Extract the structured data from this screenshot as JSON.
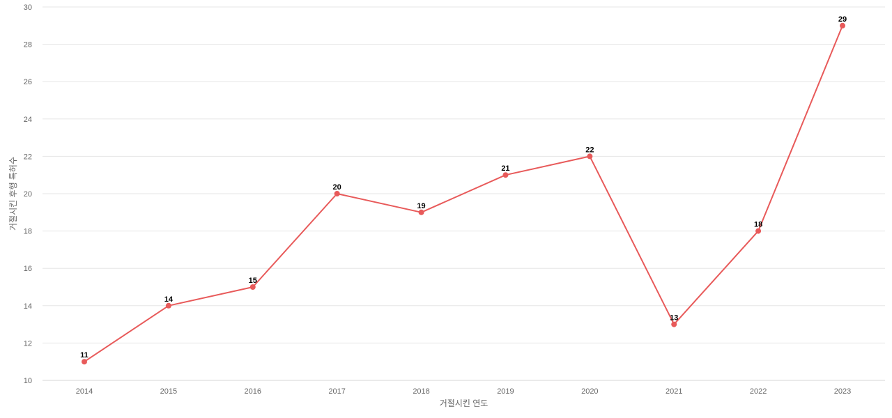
{
  "chart_data": {
    "type": "line",
    "categories": [
      "2014",
      "2015",
      "2016",
      "2017",
      "2018",
      "2019",
      "2020",
      "2021",
      "2022",
      "2023"
    ],
    "series": [
      {
        "values": [
          11,
          14,
          15,
          20,
          19,
          21,
          22,
          13,
          18,
          29
        ],
        "color": "#e85a5a"
      }
    ],
    "xlabel": "거절시킨 연도",
    "ylabel": "거절시킨 후행 특허수",
    "ylim": [
      10,
      30
    ],
    "yticks": [
      10,
      12,
      14,
      16,
      18,
      20,
      22,
      24,
      26,
      28,
      30
    ],
    "grid": true,
    "data_labels": true
  }
}
